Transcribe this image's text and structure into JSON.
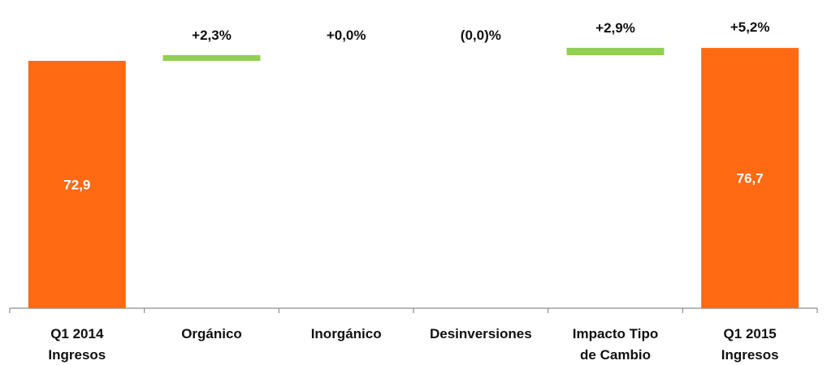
{
  "chart_data": {
    "type": "bar",
    "subtype": "waterfall",
    "title": "",
    "xlabel": "",
    "ylabel": "",
    "grid": false,
    "legend": "none",
    "categories": [
      [
        "Q1 2014",
        "Ingresos"
      ],
      [
        "Orgánico"
      ],
      [
        "Inorgánico"
      ],
      [
        "Desinversiones"
      ],
      [
        "Impacto Tipo",
        "de Cambio"
      ],
      [
        "Q1 2015",
        "Ingresos"
      ]
    ],
    "bars": [
      {
        "kind": "total",
        "value": 72.9,
        "inner_label": "72,9",
        "top_label": ""
      },
      {
        "kind": "delta",
        "change_pct": 2.3,
        "top_label": "+2,3%"
      },
      {
        "kind": "delta",
        "change_pct": 0.0,
        "top_label": "+0,0%"
      },
      {
        "kind": "delta",
        "change_pct": 0.0,
        "top_label": "(0,0)%"
      },
      {
        "kind": "delta",
        "change_pct": 2.9,
        "top_label": "+2,9%"
      },
      {
        "kind": "total",
        "value": 76.7,
        "inner_label": "76,7",
        "top_label": "+5,2%"
      }
    ],
    "colors": {
      "total": "#ff6a13",
      "increase": "#92d050",
      "axis": "#8c8c8c"
    }
  }
}
